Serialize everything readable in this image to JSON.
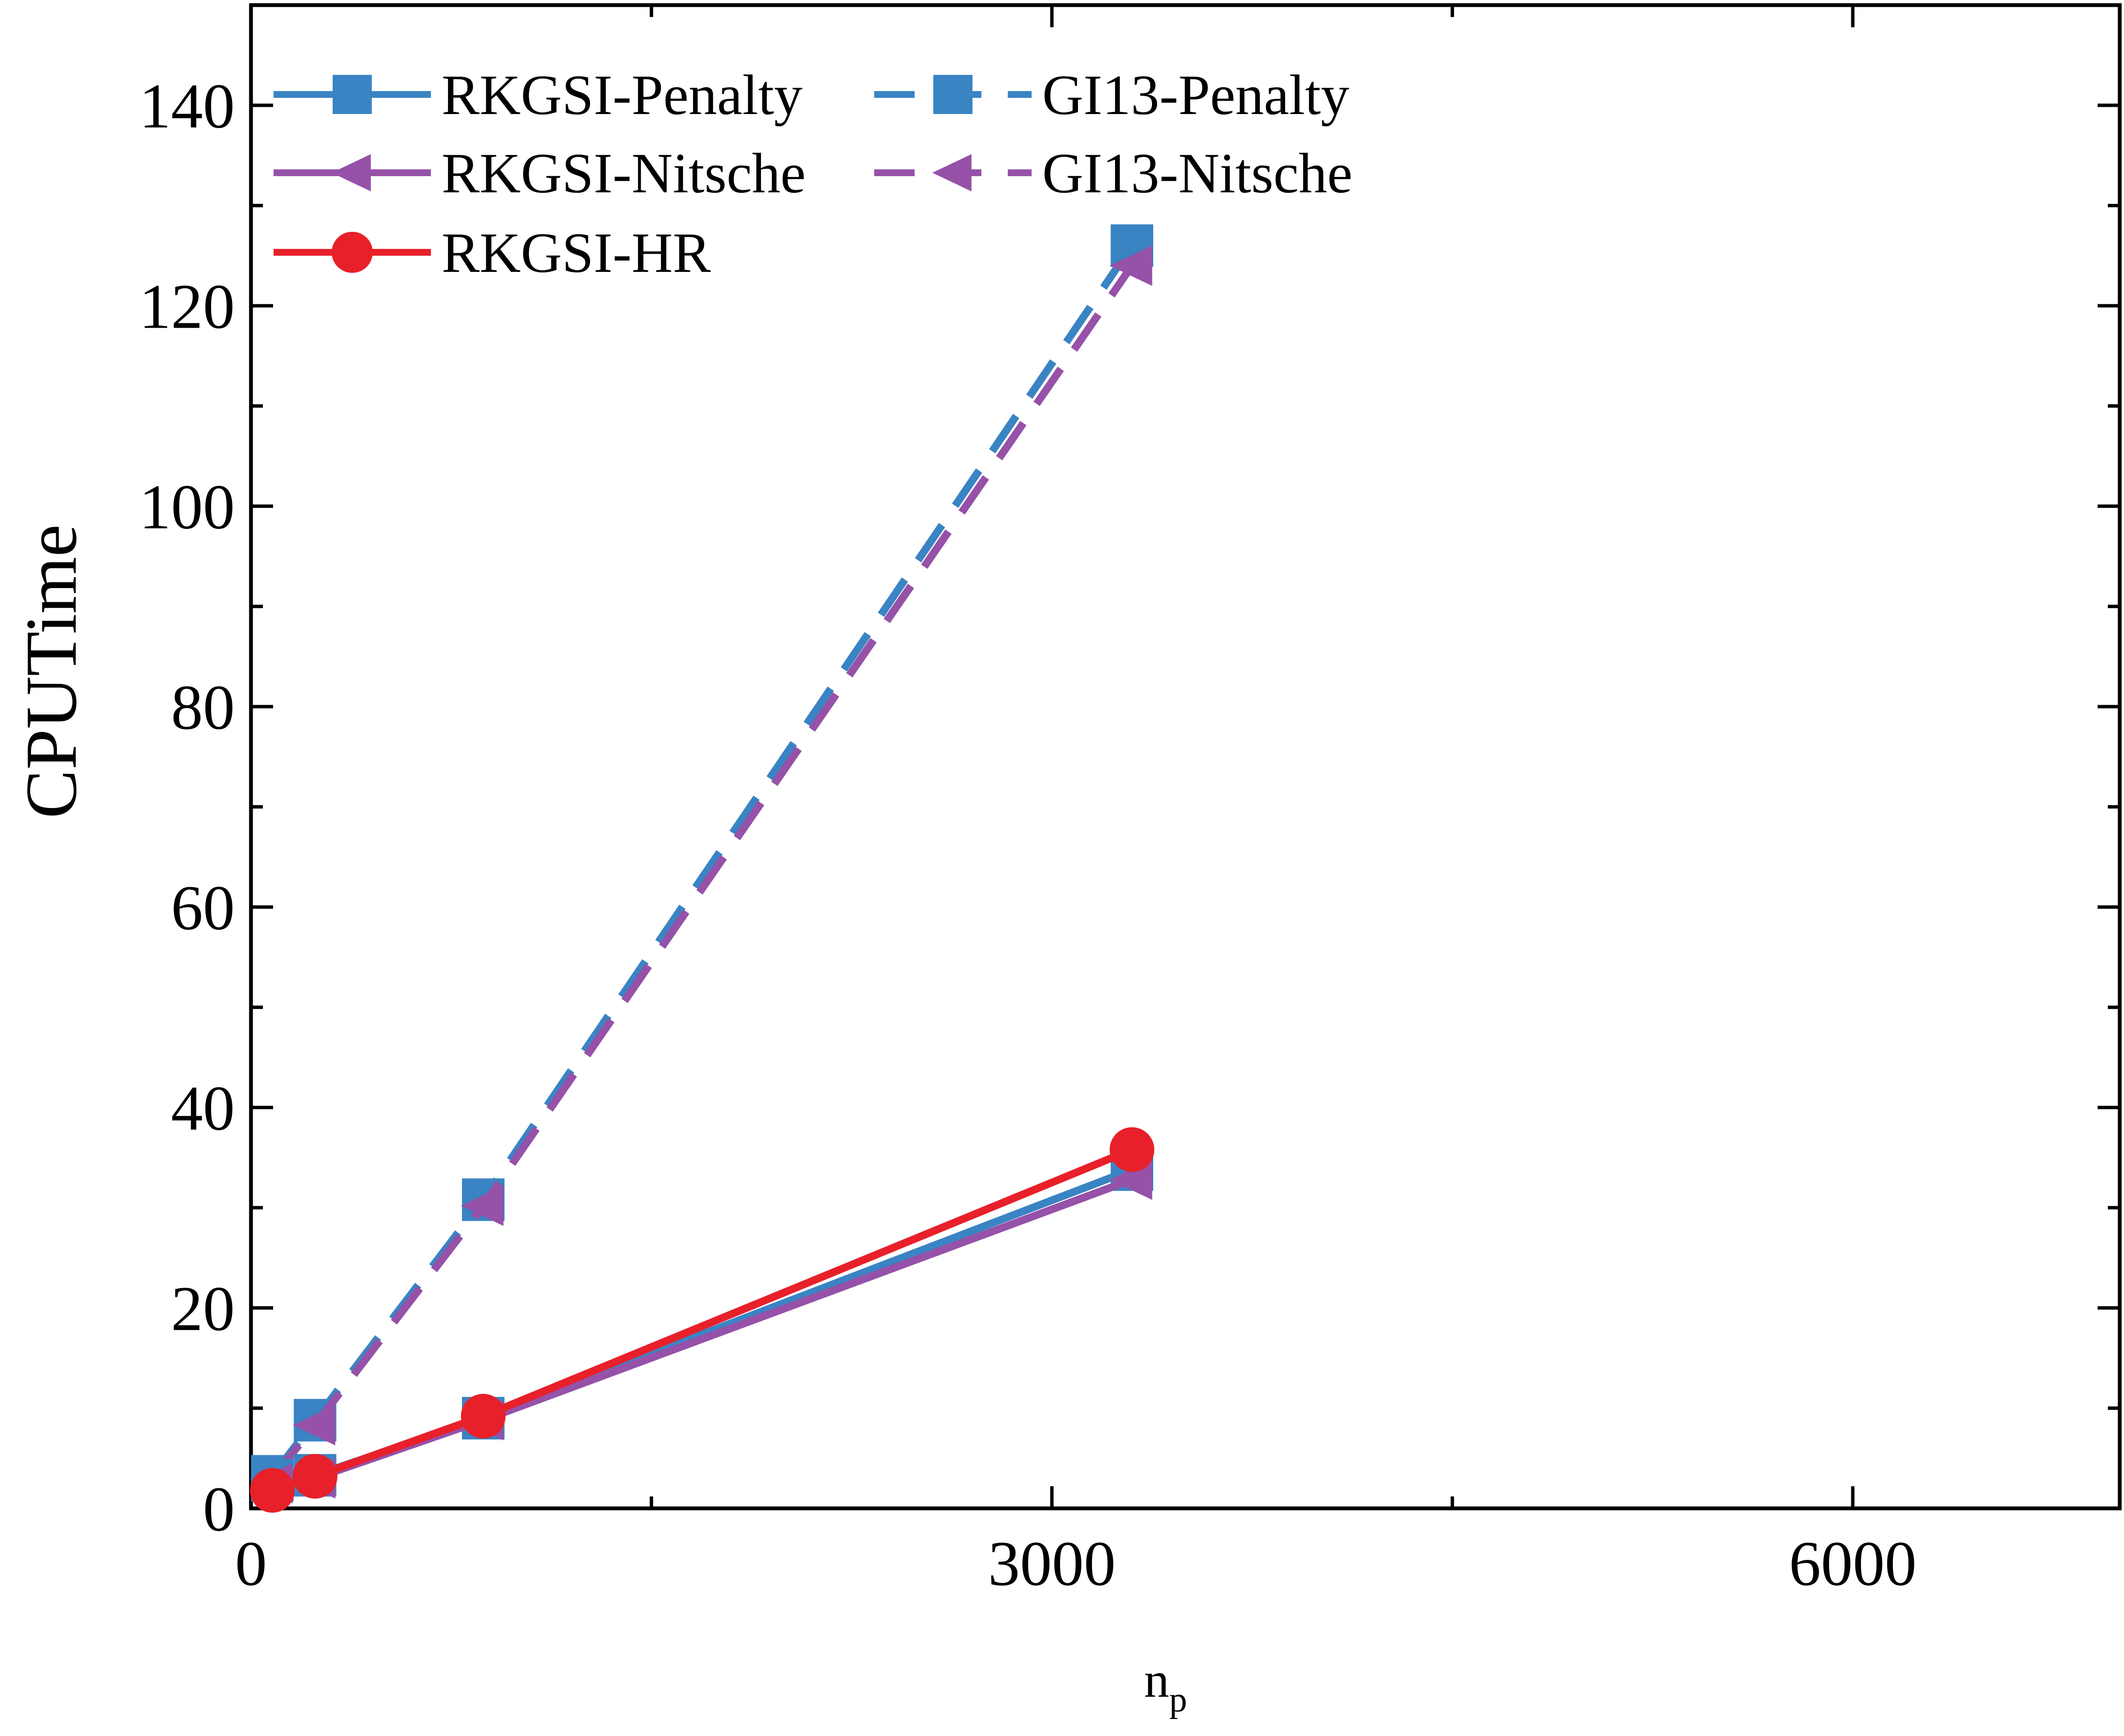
{
  "chart_data": {
    "type": "line",
    "title": "",
    "xlabel_main": "n",
    "xlabel_sub": "p",
    "ylabel": "CPUTime",
    "xlim": [
      0,
      7000
    ],
    "ylim": [
      0,
      150
    ],
    "x_ticks": [
      0,
      3000,
      6000
    ],
    "y_ticks": [
      0,
      20,
      40,
      60,
      80,
      100,
      120,
      140
    ],
    "grid": false,
    "legend_position": "top-left",
    "series": [
      {
        "name": "RKGSI-Penalty",
        "color": "#3a84c4",
        "dash": "solid",
        "marker": "square",
        "x": [
          80,
          240,
          870,
          3300
        ],
        "y": [
          2.8,
          3.3,
          9.0,
          33.8
        ]
      },
      {
        "name": "GI13-Penalty",
        "color": "#3a84c4",
        "dash": "dashed",
        "marker": "square",
        "x": [
          80,
          240,
          870,
          3300
        ],
        "y": [
          3.2,
          8.8,
          30.8,
          126.0
        ]
      },
      {
        "name": "RKGSI-Nitsche",
        "color": "#9651a8",
        "dash": "solid",
        "marker": "triangle-left",
        "x": [
          80,
          240,
          870,
          3300
        ],
        "y": [
          2.5,
          3.0,
          8.8,
          32.8
        ]
      },
      {
        "name": "GI13-Nitsche",
        "color": "#9651a8",
        "dash": "dashed",
        "marker": "triangle-left",
        "x": [
          80,
          240,
          870,
          3300
        ],
        "y": [
          3.0,
          8.3,
          30.2,
          124.0
        ]
      },
      {
        "name": "RKGSI-HR",
        "color": "#e8202a",
        "dash": "solid",
        "marker": "circle",
        "x": [
          80,
          240,
          870,
          3300
        ],
        "y": [
          1.8,
          3.2,
          9.2,
          35.8
        ]
      }
    ]
  }
}
